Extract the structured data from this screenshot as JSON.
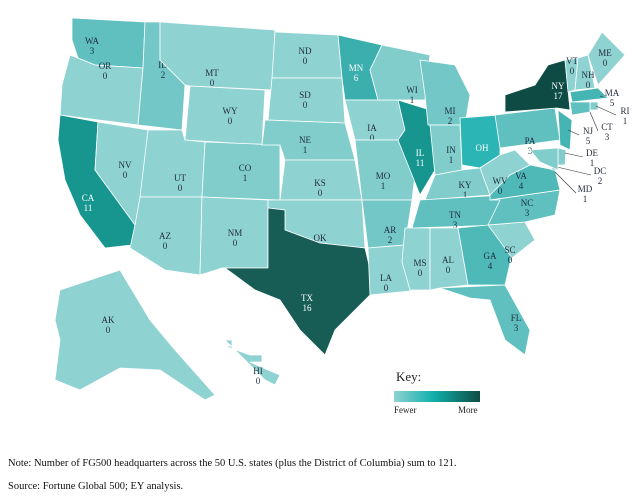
{
  "key": {
    "title": "Key:",
    "low": "Fewer",
    "high": "More",
    "colors": [
      "#8fd2d2",
      "#11b1ad",
      "#114c46"
    ]
  },
  "states": [
    {
      "abbr": "WA",
      "value": "3",
      "color": "#5fc0bf"
    },
    {
      "abbr": "OR",
      "value": "0",
      "color": "#8fd2d2"
    },
    {
      "abbr": "CA",
      "value": "11",
      "color": "#17958f"
    },
    {
      "abbr": "NV",
      "value": "0",
      "color": "#8fd2d2"
    },
    {
      "abbr": "ID",
      "value": "2",
      "color": "#73c8c7"
    },
    {
      "abbr": "MT",
      "value": "0",
      "color": "#8fd2d2"
    },
    {
      "abbr": "WY",
      "value": "0",
      "color": "#8fd2d2"
    },
    {
      "abbr": "UT",
      "value": "0",
      "color": "#8fd2d2"
    },
    {
      "abbr": "CO",
      "value": "1",
      "color": "#80cdcc"
    },
    {
      "abbr": "AZ",
      "value": "0",
      "color": "#8fd2d2"
    },
    {
      "abbr": "NM",
      "value": "0",
      "color": "#8fd2d2"
    },
    {
      "abbr": "ND",
      "value": "0",
      "color": "#8fd2d2"
    },
    {
      "abbr": "SD",
      "value": "0",
      "color": "#8fd2d2"
    },
    {
      "abbr": "NE",
      "value": "1",
      "color": "#80cdcc"
    },
    {
      "abbr": "KS",
      "value": "0",
      "color": "#8fd2d2"
    },
    {
      "abbr": "OK",
      "value": "0",
      "color": "#8fd2d2"
    },
    {
      "abbr": "TX",
      "value": "16",
      "color": "#175c55"
    },
    {
      "abbr": "MN",
      "value": "6",
      "color": "#3aafae"
    },
    {
      "abbr": "IA",
      "value": "0",
      "color": "#8fd2d2"
    },
    {
      "abbr": "MO",
      "value": "1",
      "color": "#80cdcc"
    },
    {
      "abbr": "AR",
      "value": "2",
      "color": "#73c8c7"
    },
    {
      "abbr": "LA",
      "value": "0",
      "color": "#8fd2d2"
    },
    {
      "abbr": "WI",
      "value": "1",
      "color": "#80cdcc"
    },
    {
      "abbr": "IL",
      "value": "11",
      "color": "#17958f"
    },
    {
      "abbr": "MI",
      "value": "2",
      "color": "#73c8c7"
    },
    {
      "abbr": "IN",
      "value": "1",
      "color": "#80cdcc"
    },
    {
      "abbr": "OH",
      "value": "",
      "color": "#2cb5b5"
    },
    {
      "abbr": "KY",
      "value": "1",
      "color": "#80cdcc"
    },
    {
      "abbr": "TN",
      "value": "3",
      "color": "#5fc0bf"
    },
    {
      "abbr": "MS",
      "value": "0",
      "color": "#8fd2d2"
    },
    {
      "abbr": "AL",
      "value": "0",
      "color": "#8fd2d2"
    },
    {
      "abbr": "GA",
      "value": "4",
      "color": "#4fb9b8"
    },
    {
      "abbr": "FL",
      "value": "3",
      "color": "#5fc0bf"
    },
    {
      "abbr": "SC",
      "value": "0",
      "color": "#8fd2d2"
    },
    {
      "abbr": "NC",
      "value": "3",
      "color": "#5fc0bf"
    },
    {
      "abbr": "VA",
      "value": "4",
      "color": "#4fb9b8"
    },
    {
      "abbr": "WV",
      "value": "0",
      "color": "#8fd2d2"
    },
    {
      "abbr": "PA",
      "value": "3",
      "color": "#5fc0bf"
    },
    {
      "abbr": "NY",
      "value": "17",
      "color": "#0e4b44"
    },
    {
      "abbr": "VT",
      "value": "0",
      "color": "#8fd2d2"
    },
    {
      "abbr": "NH",
      "value": "0",
      "color": "#8fd2d2"
    },
    {
      "abbr": "ME",
      "value": "0",
      "color": "#8fd2d2"
    },
    {
      "abbr": "MA",
      "value": "5",
      "color": "#45b5b4"
    },
    {
      "abbr": "RI",
      "value": "1",
      "color": "#80cdcc"
    },
    {
      "abbr": "CT",
      "value": "3",
      "color": "#5fc0bf"
    },
    {
      "abbr": "NJ",
      "value": "5",
      "color": "#45b5b4"
    },
    {
      "abbr": "DE",
      "value": "1",
      "color": "#80cdcc"
    },
    {
      "abbr": "DC",
      "value": "2",
      "color": "#73c8c7"
    },
    {
      "abbr": "MD",
      "value": "1",
      "color": "#80cdcc"
    },
    {
      "abbr": "AK",
      "value": "0",
      "color": "#8fd2d2"
    },
    {
      "abbr": "HI",
      "value": "0",
      "color": "#8fd2d2"
    }
  ],
  "notes": {
    "note": "Note: Number of FG500 headquarters across the 50 U.S. states (plus the District of Columbia) sum to 121.",
    "source": "Source: Fortune Global 500; EY analysis."
  }
}
